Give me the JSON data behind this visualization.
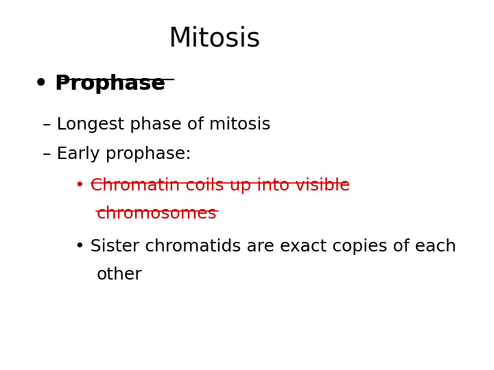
{
  "title": "Mitosis",
  "title_fontsize": 28,
  "title_color": "#000000",
  "background_color": "#ffffff",
  "bullet1_text": "Prophase",
  "bullet1_fontsize": 22,
  "bullet1_color": "#000000",
  "sub1_text": "– Longest phase of mitosis",
  "sub1_fontsize": 18,
  "sub1_color": "#000000",
  "sub2_text": "– Early prophase:",
  "sub2_fontsize": 18,
  "sub2_color": "#000000",
  "sub_bullet1_line1": "Chromatin coils up into visible",
  "sub_bullet1_line2": "chromosomes",
  "sub_bullet1_fontsize": 18,
  "sub_bullet1_color": "#cc0000",
  "sub_bullet2_line1": "Sister chromatids are exact copies of each",
  "sub_bullet2_line2": "other",
  "sub_bullet2_fontsize": 18,
  "sub_bullet2_color": "#000000"
}
